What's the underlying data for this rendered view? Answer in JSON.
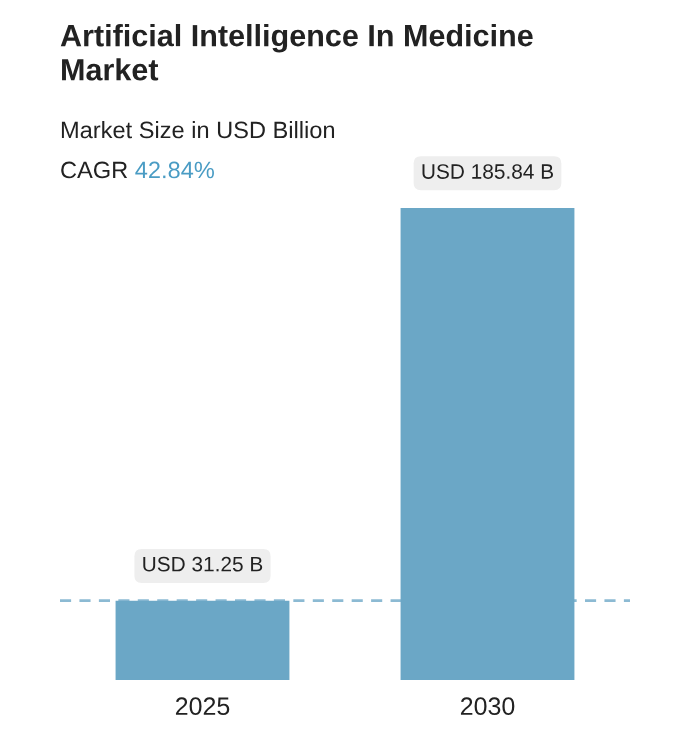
{
  "chart_data": {
    "type": "bar",
    "title": "Artificial Intelligence In Medicine\nMarket",
    "subtitle": "Market Size in USD Billion",
    "annotations": [
      "CAGR 42.84%"
    ],
    "categories": [
      "2025",
      "2030"
    ],
    "values": [
      31.25,
      185.84
    ],
    "value_labels": [
      "USD 31.25 B",
      "USD 185.84 B"
    ],
    "colors": [
      "#6ba7c6",
      "#6ba7c6"
    ],
    "ref_lines": [
      {
        "axis": "y",
        "value": 31.25,
        "color": "#8cbad3",
        "line_style": "dashed"
      }
    ],
    "grid": false,
    "legend": false
  }
}
